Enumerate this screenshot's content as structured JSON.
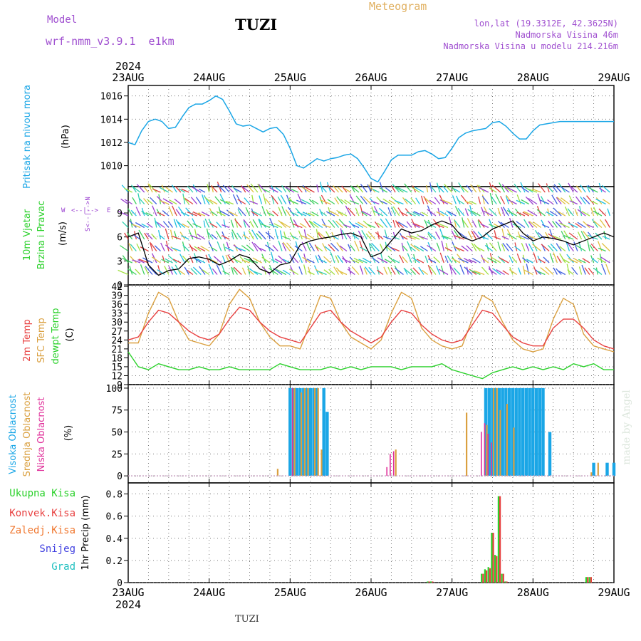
{
  "header": {
    "model_label": "Model",
    "model_name": "wrf-nmm_v3.9.1  e1km",
    "station": "TUZI",
    "meteogram": "Meteogram",
    "lonlat": "lon,lat (19.3312E, 42.3625N)",
    "elevation": "Nadmorska Visina 46m",
    "elevation_model": "Nadmorska Visina u modelu 214.216m",
    "footer_station": "TUZI",
    "watermark": "made by Angel"
  },
  "time_axis": {
    "year": "2024",
    "days": [
      "23AUG",
      "24AUG",
      "25AUG",
      "26AUG",
      "27AUG",
      "28AUG",
      "29AUG"
    ]
  },
  "colors": {
    "pressure": "#1aa6e6",
    "temp2m": "#e84040",
    "sfc": "#daa040",
    "dewpt": "#2bd12b",
    "high_cloud": "#1aa6e6",
    "mid_cloud": "#daa040",
    "low_cloud": "#e0309a",
    "total_precip": "#2bd12b",
    "conv_precip": "#e84040",
    "freezing": "#f07830",
    "snow": "#4040e0",
    "hail": "#20c0c0",
    "wind_purple": "#9a40d0"
  },
  "panels": {
    "pressure": {
      "label": "Pritisak na nivou mora",
      "unit": "(hPa)",
      "ticks": [
        "1010",
        "1012",
        "1014",
        "1016"
      ]
    },
    "wind": {
      "label1": "10m Vjetar",
      "label2": "Brzina i Pravac",
      "unit": "(m/s)",
      "ticks": [
        "0",
        "3",
        "6",
        "9"
      ],
      "compass_w": "W",
      "compass_e": "E",
      "compass_ns": "S<--|-->N",
      "compass_mid": "<--|-->"
    },
    "temp": {
      "label1": "2m Temp",
      "label2": "SFC Temp",
      "label3": "dewpt Temp",
      "unit": "(C)",
      "ticks": [
        "9",
        "12",
        "15",
        "18",
        "21",
        "24",
        "27",
        "30",
        "33",
        "36",
        "39",
        "42"
      ]
    },
    "cloud": {
      "label1": "Visoka Oblacnost",
      "label2": "Srednja Oblacnost",
      "label3": "Niska Oblacnost",
      "unit": "(%)",
      "ticks": [
        "0",
        "25",
        "50",
        "75",
        "100"
      ]
    },
    "precip": {
      "label1": "Ukupna Kisa",
      "label2": "Konvek.Kisa",
      "label3": "Zaledj.Kisa",
      "label4": "Snijeg",
      "label5": "Grad",
      "unit": "1hr Precip (mm)",
      "ticks": [
        "0",
        "0.2",
        "0.4",
        "0.6",
        "0.8"
      ]
    }
  },
  "chart_data": [
    {
      "type": "line",
      "title": "Pritisak na nivou mora",
      "ylabel": "(hPa)",
      "ylim": [
        1008,
        1017
      ],
      "grid": true,
      "x_unit": "hours from 23AUG 00",
      "series": [
        {
          "name": "Pritisak na nivou mora",
          "x": [
            0,
            2,
            4,
            6,
            8,
            10,
            12,
            14,
            16,
            18,
            20,
            22,
            24,
            26,
            28,
            30,
            32,
            34,
            36,
            38,
            40,
            42,
            44,
            46,
            48,
            50,
            52,
            54,
            56,
            58,
            60,
            62,
            64,
            66,
            68,
            70,
            72,
            74,
            76,
            78,
            80,
            82,
            84,
            86,
            88,
            90,
            92,
            94,
            96,
            98,
            100,
            102,
            104,
            106,
            108,
            110,
            112,
            114,
            116,
            118,
            120,
            122,
            124,
            126,
            128,
            130,
            132,
            134,
            136,
            138,
            140,
            142,
            144
          ],
          "y": [
            1012.0,
            1011.8,
            1013.0,
            1013.8,
            1014.0,
            1013.8,
            1013.2,
            1013.3,
            1014.2,
            1015.0,
            1015.3,
            1015.3,
            1015.6,
            1016.0,
            1015.7,
            1014.7,
            1013.6,
            1013.4,
            1013.5,
            1013.2,
            1012.9,
            1013.2,
            1013.3,
            1012.7,
            1011.5,
            1010.0,
            1009.8,
            1010.2,
            1010.6,
            1010.4,
            1010.6,
            1010.7,
            1010.9,
            1011.0,
            1010.6,
            1009.8,
            1008.9,
            1008.6,
            1009.5,
            1010.5,
            1010.9,
            1010.9,
            1010.9,
            1011.2,
            1011.3,
            1011.0,
            1010.6,
            1010.7,
            1011.5,
            1012.4,
            1012.8,
            1013.0,
            1013.1,
            1013.2,
            1013.7,
            1013.8,
            1013.4,
            1012.8,
            1012.3,
            1012.3,
            1013.0,
            1013.5,
            1013.6,
            1013.7,
            1013.8,
            1013.8,
            1013.8,
            1013.8,
            1013.8,
            1013.8,
            1013.8,
            1013.8,
            1013.8
          ]
        }
      ]
    },
    {
      "type": "line",
      "title": "10m Vjetar Brzina i Pravac",
      "ylabel": "(m/s)",
      "ylim": [
        0,
        12
      ],
      "grid": true,
      "x_unit": "hours from 23AUG 00",
      "series": [
        {
          "name": "10m Vjetar",
          "x": [
            0,
            3,
            6,
            9,
            12,
            15,
            18,
            21,
            24,
            27,
            30,
            33,
            36,
            39,
            42,
            45,
            48,
            51,
            54,
            57,
            60,
            63,
            66,
            69,
            72,
            75,
            78,
            81,
            84,
            87,
            90,
            93,
            96,
            99,
            102,
            105,
            108,
            111,
            114,
            117,
            120,
            123,
            126,
            129,
            132,
            135,
            138,
            141,
            144
          ],
          "y": [
            6.0,
            6.5,
            2.5,
            1.2,
            1.8,
            2.0,
            3.3,
            3.5,
            3.2,
            2.5,
            3.0,
            3.8,
            3.4,
            2.0,
            1.5,
            2.5,
            2.8,
            5.0,
            5.5,
            5.8,
            6.0,
            6.3,
            6.5,
            6.0,
            3.5,
            4.0,
            5.5,
            7.0,
            6.5,
            6.8,
            7.5,
            8.0,
            7.5,
            6.0,
            5.5,
            6.0,
            7.0,
            7.5,
            8.0,
            6.5,
            5.5,
            6.0,
            5.8,
            5.5,
            5.0,
            5.5,
            6.0,
            6.5,
            6.0
          ]
        }
      ]
    },
    {
      "type": "line",
      "title": "2m Temp / SFC Temp / dewpt Temp",
      "ylabel": "(C)",
      "ylim": [
        9,
        42
      ],
      "grid": true,
      "x_unit": "hours from 23AUG 00",
      "series": [
        {
          "name": "2m Temp",
          "x": [
            0,
            3,
            6,
            9,
            12,
            15,
            18,
            21,
            24,
            27,
            30,
            33,
            36,
            39,
            42,
            45,
            48,
            51,
            54,
            57,
            60,
            63,
            66,
            69,
            72,
            75,
            78,
            81,
            84,
            87,
            90,
            93,
            96,
            99,
            102,
            105,
            108,
            111,
            114,
            117,
            120,
            123,
            126,
            129,
            132,
            135,
            138,
            141,
            144
          ],
          "y": [
            24,
            25,
            30,
            34,
            33,
            30,
            27,
            25,
            24,
            26,
            31,
            35,
            34,
            30,
            27,
            25,
            24,
            23,
            28,
            33,
            34,
            30,
            27,
            25,
            23,
            25,
            30,
            34,
            33,
            29,
            26,
            24,
            23,
            24,
            29,
            34,
            33,
            29,
            25,
            23,
            22,
            22,
            28,
            31,
            31,
            28,
            24,
            22,
            21
          ]
        },
        {
          "name": "SFC Temp",
          "x": [
            0,
            3,
            6,
            9,
            12,
            15,
            18,
            21,
            24,
            27,
            30,
            33,
            36,
            39,
            42,
            45,
            48,
            51,
            54,
            57,
            60,
            63,
            66,
            69,
            72,
            75,
            78,
            81,
            84,
            87,
            90,
            93,
            96,
            99,
            102,
            105,
            108,
            111,
            114,
            117,
            120,
            123,
            126,
            129,
            132,
            135,
            138,
            141,
            144
          ],
          "y": [
            23,
            23,
            33,
            40,
            38,
            30,
            24,
            23,
            22,
            26,
            36,
            41,
            38,
            30,
            25,
            22,
            22,
            21,
            30,
            39,
            38,
            30,
            25,
            23,
            21,
            24,
            33,
            40,
            38,
            28,
            24,
            22,
            21,
            22,
            31,
            39,
            37,
            30,
            24,
            21,
            20,
            21,
            31,
            38,
            36,
            26,
            22,
            21,
            20
          ]
        },
        {
          "name": "dewpt Temp",
          "x": [
            0,
            3,
            6,
            9,
            12,
            15,
            18,
            21,
            24,
            27,
            30,
            33,
            36,
            39,
            42,
            45,
            48,
            51,
            54,
            57,
            60,
            63,
            66,
            69,
            72,
            75,
            78,
            81,
            84,
            87,
            90,
            93,
            96,
            99,
            102,
            105,
            108,
            111,
            114,
            117,
            120,
            123,
            126,
            129,
            132,
            135,
            138,
            141,
            144
          ],
          "y": [
            20,
            15,
            14,
            16,
            15,
            14,
            14,
            15,
            14,
            14,
            15,
            14,
            14,
            14,
            14,
            16,
            15,
            14,
            14,
            14,
            15,
            14,
            15,
            14,
            15,
            15,
            15,
            14,
            15,
            15,
            15,
            16,
            14,
            13,
            12,
            11,
            13,
            14,
            15,
            14,
            15,
            14,
            15,
            14,
            16,
            15,
            16,
            14,
            14
          ]
        }
      ]
    },
    {
      "type": "bar",
      "title": "Visoka / Srednja / Niska Oblacnost",
      "ylabel": "(%)",
      "ylim": [
        0,
        100
      ],
      "grid": true,
      "x_unit": "hours from 23AUG 00",
      "series": [
        {
          "name": "Visoka Oblacnost",
          "x": [
            48,
            49,
            50,
            51,
            52,
            53,
            54,
            55,
            56,
            58,
            59,
            62,
            63,
            95,
            106,
            107,
            108,
            109,
            110,
            111,
            112,
            113,
            114,
            115,
            116,
            117,
            118,
            119,
            120,
            121,
            122,
            123,
            125,
            132,
            138,
            142,
            144
          ],
          "y": [
            100,
            100,
            100,
            100,
            100,
            100,
            100,
            100,
            100,
            100,
            73,
            0,
            0,
            0,
            100,
            100,
            100,
            100,
            100,
            100,
            100,
            100,
            100,
            100,
            100,
            100,
            100,
            100,
            100,
            100,
            100,
            100,
            50,
            0,
            15,
            15,
            15
          ]
        },
        {
          "name": "Srednja Oblacnost",
          "x": [
            44,
            49,
            51,
            52,
            53,
            55,
            56,
            57,
            63,
            79,
            100,
            106,
            108,
            109,
            110,
            112,
            114,
            137,
            139
          ],
          "y": [
            8,
            100,
            95,
            100,
            100,
            100,
            100,
            30,
            0,
            30,
            72,
            58,
            100,
            100,
            75,
            82,
            55,
            4,
            15
          ]
        },
        {
          "name": "Niska Oblacnost",
          "x": [
            49,
            57,
            77,
            78,
            79,
            105,
            106,
            107,
            108,
            109
          ],
          "y": [
            100,
            0,
            10,
            25,
            28,
            50,
            60,
            48,
            38,
            0
          ]
        }
      ]
    },
    {
      "type": "bar",
      "title": "1hr Precip",
      "ylabel": "1hr Precip (mm)",
      "ylim": [
        0,
        0.9
      ],
      "grid": true,
      "x_unit": "hours from 23AUG 00",
      "series": [
        {
          "name": "Ukupna Kisa",
          "x": [
            89,
            90,
            105,
            106,
            107,
            108,
            109,
            110,
            111,
            112,
            136,
            137
          ],
          "y": [
            0.01,
            0.01,
            0.08,
            0.12,
            0.14,
            0.45,
            0.25,
            0.78,
            0.08,
            0.01,
            0.05,
            0.05
          ]
        },
        {
          "name": "Konvek.Kisa",
          "x": [
            89,
            90,
            105,
            106,
            107,
            108,
            109,
            110,
            111,
            112,
            136,
            137
          ],
          "y": [
            0.01,
            0.01,
            0.08,
            0.11,
            0.13,
            0.45,
            0.24,
            0.78,
            0.08,
            0.01,
            0.05,
            0.05
          ]
        }
      ]
    }
  ]
}
